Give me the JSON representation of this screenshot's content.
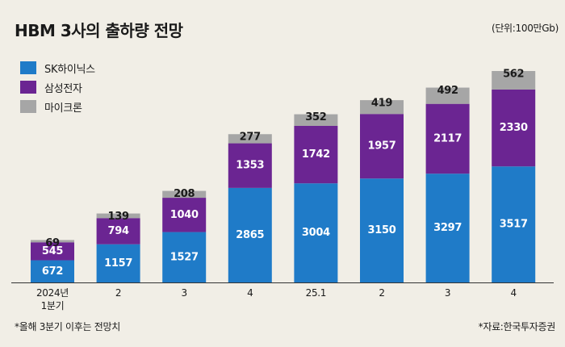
{
  "title": "HBM 3사의 출하량 전망",
  "unit": "(단위:100만Gb)",
  "footnote": "*올해 3분기 이후는 전망치",
  "source": "*자료:한국투자증권",
  "chart_data": {
    "type": "bar",
    "stacked": true,
    "categories": [
      "2024년\n1분기",
      "2",
      "3",
      "4",
      "25.1",
      "2",
      "3",
      "4"
    ],
    "series": [
      {
        "name": "SK하이닉스",
        "color": "#1f7bc8",
        "values": [
          672,
          1157,
          1527,
          2865,
          3004,
          3150,
          3297,
          3517
        ]
      },
      {
        "name": "삼성전자",
        "color": "#6b2592",
        "values": [
          545,
          794,
          1040,
          1353,
          1742,
          1957,
          2117,
          2330
        ]
      },
      {
        "name": "마이크론",
        "color": "#a6a6a6",
        "values": [
          69,
          139,
          208,
          277,
          352,
          419,
          492,
          562
        ]
      }
    ],
    "ylim": [
      0,
      6409
    ],
    "grid": false,
    "legend": "top-left"
  }
}
